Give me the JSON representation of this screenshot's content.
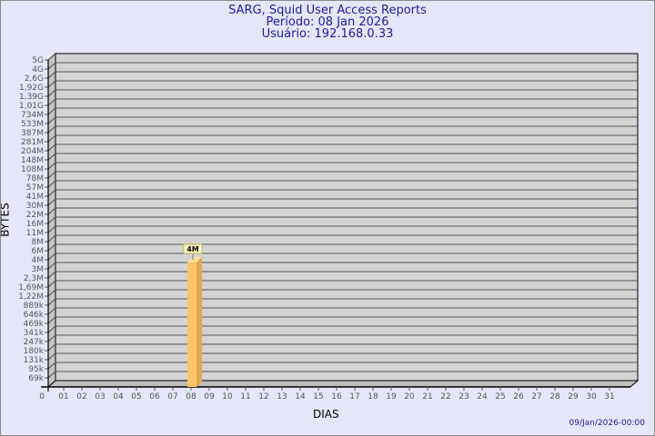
{
  "header": {
    "title": "SARG, Squid User Access Reports",
    "period": "Período: 08 Jan 2026",
    "user": "Usuário: 192.168.0.33"
  },
  "footer": {
    "timestamp": "09/Jan/2026-00:00"
  },
  "chart_data": {
    "type": "bar",
    "title": "SARG, Squid User Access Reports",
    "xlabel": "DIAS",
    "ylabel": "BYTES",
    "y_scale": "log",
    "y_ticks": [
      "5G",
      "4G",
      "2,6G",
      "1,92G",
      "1,39G",
      "1,01G",
      "734M",
      "533M",
      "387M",
      "281M",
      "204M",
      "148M",
      "108M",
      "78M",
      "57M",
      "41M",
      "30M",
      "22M",
      "16M",
      "11M",
      "8M",
      "6M",
      "4M",
      "3M",
      "2,3M",
      "1,69M",
      "1,22M",
      "889k",
      "646k",
      "469k",
      "341k",
      "247k",
      "180k",
      "131k",
      "95k",
      "69k"
    ],
    "y_origin_label": "0",
    "categories": [
      "01",
      "02",
      "03",
      "04",
      "05",
      "06",
      "07",
      "08",
      "09",
      "10",
      "11",
      "12",
      "13",
      "14",
      "15",
      "16",
      "17",
      "18",
      "19",
      "20",
      "21",
      "22",
      "23",
      "24",
      "25",
      "26",
      "27",
      "28",
      "29",
      "30",
      "31"
    ],
    "series": [
      {
        "values": [
          0,
          0,
          0,
          0,
          0,
          0,
          0,
          4000000,
          0,
          0,
          0,
          0,
          0,
          0,
          0,
          0,
          0,
          0,
          0,
          0,
          0,
          0,
          0,
          0,
          0,
          0,
          0,
          0,
          0,
          0,
          0
        ],
        "labels": {
          "08": "4M"
        }
      }
    ],
    "grid": true,
    "colors": {
      "bar_front": "#fcc468",
      "bar_side": "#e0a850",
      "bar_top": "#fde0a0",
      "wall": "#d3d3d3",
      "grid": "#555555",
      "label_box": "#fffacd"
    }
  }
}
